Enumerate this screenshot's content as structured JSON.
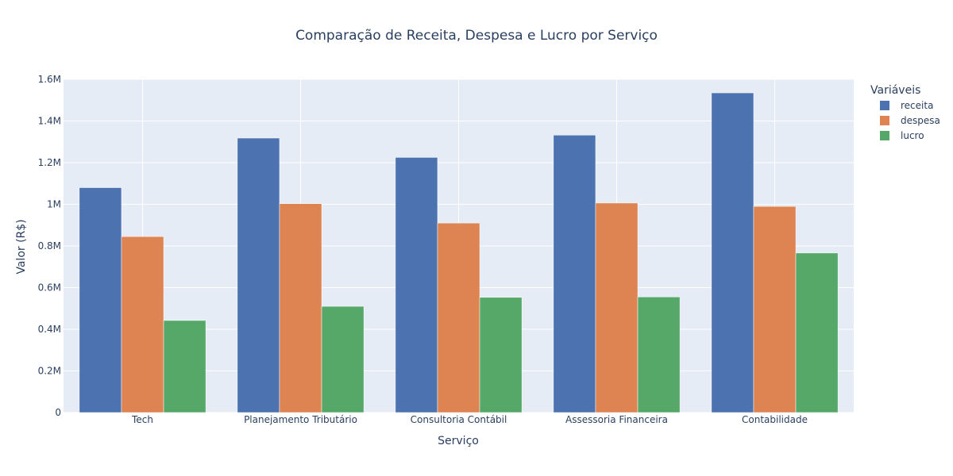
{
  "chart_data": {
    "type": "bar",
    "title": "Comparação de Receita, Despesa e Lucro por Serviço",
    "xlabel": "Serviço",
    "ylabel": "Valor (R$)",
    "categories": [
      "Tech",
      "Planejamento Tributário",
      "Consultoria Contábil",
      "Assessoria Financeira",
      "Contabilidade"
    ],
    "series": [
      {
        "name": "receita",
        "color": "#4c72b0",
        "values": [
          1080000,
          1318000,
          1225000,
          1332000,
          1535000
        ]
      },
      {
        "name": "despesa",
        "color": "#dd8452",
        "values": [
          845000,
          1003000,
          910000,
          1006000,
          990000
        ]
      },
      {
        "name": "lucro",
        "color": "#55a868",
        "values": [
          442000,
          510000,
          553000,
          555000,
          766000
        ]
      }
    ],
    "ylim": [
      0,
      1600000
    ],
    "yticks": [
      0,
      200000,
      400000,
      600000,
      800000,
      1000000,
      1200000,
      1400000,
      1600000
    ],
    "ytick_labels": [
      "0",
      "0.2M",
      "0.4M",
      "0.6M",
      "0.8M",
      "1M",
      "1.2M",
      "1.4M",
      "1.6M"
    ],
    "grid": true,
    "legend_title": "Variáveis",
    "legend_position": "top-right",
    "background": "#e5ecf6"
  }
}
